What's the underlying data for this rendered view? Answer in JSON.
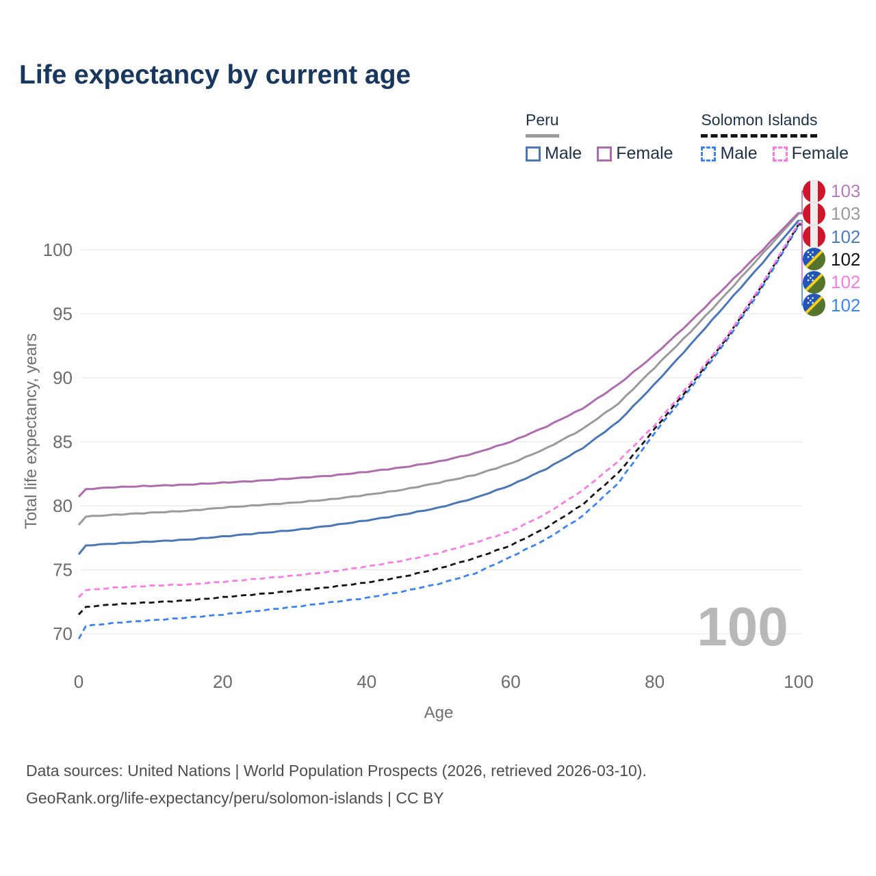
{
  "title": "Life expectancy by current age",
  "legend": {
    "groups": [
      {
        "name": "Peru",
        "line_style": "solid",
        "underline_color": "#9a9a9a",
        "items": [
          {
            "label": "Male",
            "color": "#4a76b5"
          },
          {
            "label": "Female",
            "color": "#ae6cae"
          }
        ]
      },
      {
        "name": "Solomon Islands",
        "line_style": "dashed",
        "underline_color": "#141414",
        "items": [
          {
            "label": "Male",
            "color": "#3c82f0"
          },
          {
            "label": "Female",
            "color": "#fb7ce4"
          }
        ]
      }
    ]
  },
  "chart_data": {
    "type": "line",
    "title": "Life expectancy by current age",
    "xlabel": "Age",
    "ylabel": "Total life expectancy, years",
    "xlim": [
      0,
      100
    ],
    "ylim": [
      69,
      104
    ],
    "x_ticks": [
      0,
      20,
      40,
      60,
      80,
      100
    ],
    "y_ticks": [
      70,
      75,
      80,
      85,
      90,
      95,
      100
    ],
    "grid": "horizontal",
    "legend_position": "top-right",
    "watermark": "100",
    "x": [
      0,
      1,
      5,
      10,
      15,
      20,
      25,
      30,
      35,
      40,
      45,
      50,
      55,
      60,
      65,
      70,
      75,
      80,
      85,
      90,
      95,
      100
    ],
    "series": [
      {
        "name": "Peru Male",
        "country": "Peru",
        "sex": "Male",
        "color": "#4a76b5",
        "dash": "solid",
        "flag": "peru",
        "end_label": "102",
        "end_label_color": "#4c7cc2",
        "slot": 2,
        "values": [
          76.2,
          76.9,
          77.05,
          77.2,
          77.35,
          77.6,
          77.85,
          78.1,
          78.45,
          78.85,
          79.3,
          79.85,
          80.6,
          81.6,
          82.9,
          84.5,
          86.6,
          89.5,
          92.6,
          95.8,
          99.0,
          102.3
        ]
      },
      {
        "name": "Peru Both Sexes",
        "country": "Peru",
        "sex": "Both",
        "color": "#9a9a9a",
        "dash": "solid",
        "flag": "peru",
        "end_label": "103",
        "end_label_color": "#9a9a9a",
        "slot": 1,
        "values": [
          78.5,
          79.15,
          79.3,
          79.45,
          79.6,
          79.85,
          80.05,
          80.25,
          80.5,
          80.85,
          81.25,
          81.8,
          82.4,
          83.3,
          84.5,
          86.0,
          88.0,
          90.8,
          93.6,
          96.6,
          99.7,
          102.8
        ]
      },
      {
        "name": "Peru Female",
        "country": "Peru",
        "sex": "Female",
        "color": "#ae6cae",
        "dash": "solid",
        "flag": "peru",
        "end_label": "103",
        "end_label_color": "#b57cc0",
        "slot": 0,
        "values": [
          80.7,
          81.3,
          81.45,
          81.55,
          81.65,
          81.8,
          81.95,
          82.15,
          82.35,
          82.65,
          83.0,
          83.45,
          84.1,
          85.0,
          86.2,
          87.6,
          89.5,
          91.8,
          94.4,
          97.2,
          100.0,
          102.9
        ]
      },
      {
        "name": "Solomon Islands Male",
        "country": "Solomon Islands",
        "sex": "Male",
        "color": "#3c82f0",
        "dash": "dashed",
        "flag": "solomon-islands",
        "end_label": "102",
        "end_label_color": "#3c86f5",
        "slot": 5,
        "values": [
          69.6,
          70.6,
          70.85,
          71.05,
          71.25,
          71.5,
          71.8,
          72.1,
          72.45,
          72.8,
          73.3,
          73.9,
          74.7,
          76.0,
          77.4,
          79.2,
          81.8,
          85.7,
          89.2,
          92.9,
          97.1,
          101.9
        ]
      },
      {
        "name": "Solomon Islands Both Sexes",
        "country": "Solomon Islands",
        "sex": "Both",
        "color": "#141414",
        "dash": "dashed",
        "flag": "solomon-islands",
        "end_label": "102",
        "end_label_color": "#111111",
        "slot": 3,
        "values": [
          71.5,
          72.1,
          72.3,
          72.45,
          72.6,
          72.85,
          73.1,
          73.35,
          73.65,
          74.0,
          74.45,
          75.1,
          75.9,
          76.9,
          78.3,
          80.1,
          82.6,
          86.0,
          89.4,
          93.1,
          97.3,
          102.0
        ]
      },
      {
        "name": "Solomon Islands Female",
        "country": "Solomon Islands",
        "sex": "Female",
        "color": "#fb7ce4",
        "dash": "dashed",
        "flag": "solomon-islands",
        "end_label": "102",
        "end_label_color": "#fb7ce4",
        "slot": 4,
        "values": [
          72.85,
          73.4,
          73.6,
          73.75,
          73.85,
          74.05,
          74.3,
          74.55,
          74.85,
          75.25,
          75.7,
          76.3,
          77.1,
          78.0,
          79.4,
          81.2,
          83.5,
          86.3,
          89.6,
          93.2,
          97.4,
          102.1
        ]
      }
    ]
  },
  "footer": {
    "line1": "Data sources: United Nations | World Population Prospects (2026, retrieved 2026-03-10).",
    "line2": "GeoRank.org/life-expectancy/peru/solomon-islands | CC BY"
  }
}
